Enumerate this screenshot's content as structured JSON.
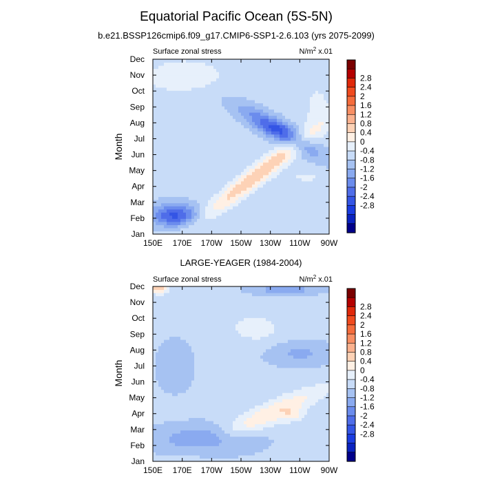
{
  "title": "Equatorial Pacific Ocean (5S-5N)",
  "colorbar": {
    "labels": [
      "2.8",
      "2.4",
      "2",
      "1.6",
      "1.2",
      "0.8",
      "0.4",
      "0",
      "-0.4",
      "-0.8",
      "-1.2",
      "-1.6",
      "-2",
      "-2.4",
      "-2.8"
    ],
    "colors_top_to_bottom": [
      "#7a0000",
      "#b40000",
      "#e0280a",
      "#f04a1e",
      "#f56c3c",
      "#f88f64",
      "#fbb28f",
      "#fdd2b6",
      "#fff0e4",
      "#e7f0fb",
      "#c8dcf8",
      "#a6c2f2",
      "#8aaaf0",
      "#6b8ced",
      "#4f6de9",
      "#3455e5",
      "#1a3ce0",
      "#0a22c0",
      "#00008a"
    ]
  },
  "chart_data": [
    {
      "type": "heatmap",
      "subtitle": "b.e21.BSSP126cmip6.f09_g17.CMIP6-SSP1-2.6.103 (yrs 2075-2099)",
      "left_label": "Surface zonal stress",
      "right_label": "N/m² x.01",
      "xlabel": "",
      "ylabel": "Month",
      "x_ticks": [
        "150E",
        "170E",
        "170W",
        "150W",
        "130W",
        "110W",
        "90W"
      ],
      "y_ticks": [
        "Jan",
        "Feb",
        "Mar",
        "Apr",
        "May",
        "Jun",
        "Jul",
        "Aug",
        "Sep",
        "Oct",
        "Nov",
        "Dec"
      ],
      "levels": [
        -2.8,
        -2.4,
        -2.0,
        -1.6,
        -1.2,
        -0.8,
        -0.4,
        0,
        0.4,
        0.8,
        1.2,
        1.6,
        2.0,
        2.4,
        2.8
      ],
      "features": [
        {
          "name": "Feb-Mar western negative",
          "lon": 165,
          "month": 1.2,
          "value": -2.0
        },
        {
          "name": "Apr-May positive band",
          "lon": 220,
          "month": 3.6,
          "value": 1.6
        },
        {
          "name": "Jul-Aug eastern negative",
          "lon": 232,
          "month": 6.5,
          "value": -1.9
        },
        {
          "name": "Oct-Nov western positive",
          "lon": 158,
          "month": 9.6,
          "value": 0.8
        }
      ]
    },
    {
      "type": "heatmap",
      "subtitle": "LARGE-YEAGER (1984-2004)",
      "left_label": "Surface zonal stress",
      "right_label": "N/m² x.01",
      "xlabel": "",
      "ylabel": "Month",
      "x_ticks": [
        "150E",
        "170E",
        "170W",
        "150W",
        "130W",
        "110W",
        "90W"
      ],
      "y_ticks": [
        "Jan",
        "Feb",
        "Mar",
        "Apr",
        "May",
        "Jun",
        "Jul",
        "Aug",
        "Sep",
        "Oct",
        "Nov",
        "Dec"
      ],
      "levels": [
        -2.8,
        -2.4,
        -2.0,
        -1.6,
        -1.2,
        -0.8,
        -0.4,
        0,
        0.4,
        0.8,
        1.2,
        1.6,
        2.0,
        2.4,
        2.8
      ],
      "features": [
        {
          "name": "Dec western positive",
          "lon": 152,
          "month": 10.8,
          "value": 1.6
        },
        {
          "name": "Apr positive band",
          "lon": 245,
          "month": 3.0,
          "value": 1.6
        },
        {
          "name": "Feb-Mar negative",
          "lon": 185,
          "month": 1.3,
          "value": -1.0
        },
        {
          "name": "Sep positive",
          "lon": 215,
          "month": 8.1,
          "value": 0.6
        }
      ]
    }
  ]
}
